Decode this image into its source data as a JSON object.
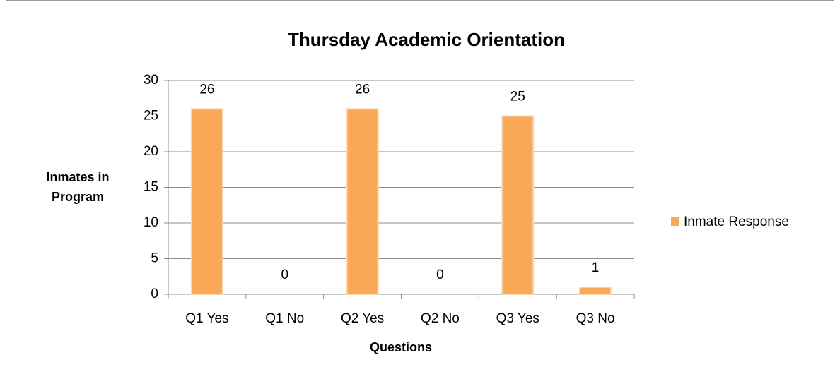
{
  "chart_data": {
    "type": "bar",
    "title": "Thursday Academic Orientation",
    "x_label": "Questions",
    "y_label": "Inmates in Program",
    "categories": [
      "Q1 Yes",
      "Q1 No",
      "Q2 Yes",
      "Q2 No",
      "Q3 Yes",
      "Q3 No"
    ],
    "series": [
      {
        "name": "Inmate Response",
        "color": "#f9a857",
        "values": [
          26,
          0,
          26,
          0,
          25,
          1
        ]
      }
    ],
    "ylim": [
      0,
      30
    ],
    "yticks": [
      0,
      5,
      10,
      15,
      20,
      25,
      30
    ],
    "grid": true,
    "legend": "right"
  }
}
